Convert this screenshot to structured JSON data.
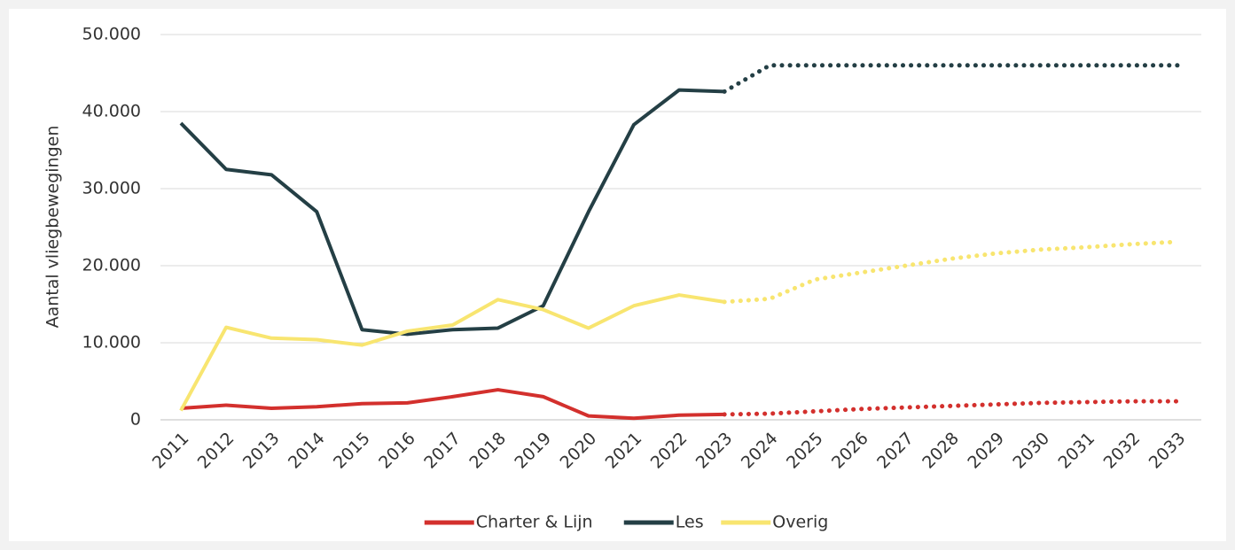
{
  "chart_data": {
    "type": "line",
    "y_label": "Aantal vliegbewegingen",
    "categories": [
      "2011",
      "2012",
      "2013",
      "2014",
      "2015",
      "2016",
      "2017",
      "2018",
      "2019",
      "2020",
      "2021",
      "2022",
      "2023",
      "2024",
      "2025",
      "2026",
      "2027",
      "2028",
      "2029",
      "2030",
      "2031",
      "2032",
      "2033"
    ],
    "dotted_from": "2023",
    "series": [
      {
        "name": "Charter & Lijn",
        "color": "#d3302d",
        "values": [
          1500,
          1900,
          1500,
          1700,
          2100,
          2200,
          3000,
          3900,
          3000,
          500,
          200,
          600,
          700,
          800,
          1100,
          1400,
          1600,
          1800,
          2000,
          2200,
          2300,
          2400,
          2400
        ]
      },
      {
        "name": "Les",
        "color": "#243f45",
        "values": [
          38500,
          32500,
          31800,
          27000,
          11700,
          11100,
          11700,
          11900,
          14800,
          27000,
          38300,
          42800,
          42600,
          46000,
          46000,
          46000,
          46000,
          46000,
          46000,
          46000,
          46000,
          46000,
          46000
        ]
      },
      {
        "name": "Overig",
        "color": "#f8e570",
        "values": [
          1200,
          12000,
          10600,
          10400,
          9700,
          11500,
          12300,
          15600,
          14300,
          11900,
          14800,
          16200,
          15300,
          15700,
          18200,
          19100,
          20000,
          20900,
          21600,
          22100,
          22400,
          22800,
          23100
        ]
      }
    ],
    "ylim": [
      0,
      50000
    ],
    "yticks": [
      0,
      {
        "value": 10000,
        "label": "10.000"
      },
      {
        "value": 20000,
        "label": "20.000"
      },
      {
        "value": 30000,
        "label": "30.000"
      },
      {
        "value": 40000,
        "label": "40.000"
      },
      {
        "value": 50000,
        "label": "50.000"
      }
    ],
    "grid": true,
    "legend": "bottom"
  }
}
